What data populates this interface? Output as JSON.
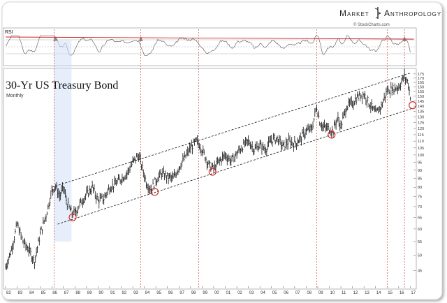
{
  "header": {
    "brand_left": "Market",
    "brand_right": "Anthropology",
    "credit": "© StockCharts.com",
    "emblem": "rod-of-asclepius-icon"
  },
  "chart_data": [
    {
      "type": "line",
      "indicator": "RSI",
      "title": "RSI",
      "ylim": [
        0,
        100
      ],
      "reference_lines": [
        30,
        50,
        70
      ],
      "resistance_line": {
        "from": {
          "x": 1982.0,
          "y": 78
        },
        "to": {
          "x": 2017.3,
          "y": 72
        }
      },
      "overbought_peaks_marked": [
        1986.3,
        1993.7,
        2016.5
      ],
      "color": "#555555"
    },
    {
      "type": "line",
      "title": "30-Yr US Treasury Bond",
      "subtitle": "Monthly",
      "scale": "log",
      "ylim": [
        40,
        180
      ],
      "y_tick_labels": [
        "45",
        "50",
        "55",
        "60",
        "65",
        "70",
        "75",
        "80",
        "85",
        "90",
        "95",
        "100",
        "105",
        "110",
        "115",
        "120",
        "125",
        "130",
        "135",
        "140",
        "145",
        "150",
        "155",
        "160",
        "165",
        "170",
        "175"
      ],
      "y_ticks": [
        45,
        50,
        55,
        60,
        65,
        70,
        75,
        80,
        85,
        90,
        95,
        100,
        105,
        110,
        115,
        120,
        125,
        130,
        135,
        140,
        145,
        150,
        155,
        160,
        165,
        170,
        175
      ],
      "x_tick_labels": [
        "82",
        "83",
        "84",
        "85",
        "86",
        "87",
        "88",
        "89",
        "90",
        "91",
        "92",
        "93",
        "94",
        "95",
        "96",
        "97",
        "98",
        "99",
        "00",
        "01",
        "02",
        "03",
        "04",
        "05",
        "06",
        "07",
        "08",
        "09",
        "10",
        "11",
        "12",
        "13",
        "14",
        "15",
        "16",
        "17"
      ],
      "xlim": [
        1982.0,
        2017.4
      ],
      "series": [
        {
          "x": [
            1982.0,
            1982.5,
            1983.0,
            1983.5,
            1984.0,
            1984.5,
            1985.0,
            1985.5,
            1986.0,
            1986.3,
            1986.7,
            1987.0,
            1987.3,
            1987.7,
            1988.0,
            1988.5,
            1989.0,
            1989.5,
            1990.0,
            1990.5,
            1991.0,
            1991.5,
            1992.0,
            1992.5,
            1993.0,
            1993.5,
            1993.8,
            1994.2,
            1994.6,
            1995.0,
            1995.5,
            1996.0,
            1996.5,
            1997.0,
            1997.5,
            1998.0,
            1998.5,
            1998.8,
            1999.2,
            1999.6,
            2000.0,
            2000.5,
            2001.0,
            2001.5,
            2002.0,
            2002.5,
            2003.0,
            2003.5,
            2004.0,
            2004.5,
            2005.0,
            2005.5,
            2006.0,
            2006.5,
            2007.0,
            2007.5,
            2008.0,
            2008.5,
            2008.9,
            2009.2,
            2009.5,
            2010.0,
            2010.3,
            2010.7,
            2011.0,
            2011.5,
            2012.0,
            2012.5,
            2013.0,
            2013.5,
            2014.0,
            2014.5,
            2015.0,
            2015.5,
            2016.0,
            2016.5,
            2016.8,
            2017.0
          ],
          "values": [
            46,
            52,
            62,
            55,
            52,
            48,
            58,
            66,
            78,
            81,
            75,
            80,
            72,
            67,
            67,
            72,
            76,
            80,
            73,
            74,
            80,
            82,
            85,
            88,
            95,
            100,
            92,
            82,
            79,
            84,
            88,
            86,
            85,
            92,
            98,
            105,
            110,
            107,
            100,
            93,
            91,
            96,
            100,
            96,
            101,
            106,
            110,
            104,
            107,
            104,
            111,
            112,
            106,
            110,
            108,
            112,
            118,
            120,
            140,
            125,
            121,
            120,
            118,
            129,
            122,
            140,
            143,
            150,
            152,
            142,
            133,
            140,
            156,
            158,
            160,
            172,
            165,
            150
          ]
        }
      ],
      "channel": {
        "upper": {
          "from": {
            "x": 1986.0,
            "y": 80
          },
          "to": {
            "x": 2017.0,
            "y": 176
          }
        },
        "lower": {
          "from": {
            "x": 1986.5,
            "y": 62
          },
          "to": {
            "x": 2017.2,
            "y": 138
          }
        }
      },
      "circled_lows": [
        {
          "x": 1987.8,
          "y": 65
        },
        {
          "x": 1994.9,
          "y": 77.5
        },
        {
          "x": 1999.9,
          "y": 89
        },
        {
          "x": 2010.2,
          "y": 115
        },
        {
          "x": 2017.2,
          "y": 141
        }
      ],
      "highlight_band": {
        "from": 1986.2,
        "to": 1987.7
      },
      "vertical_markers": [
        1986.2,
        1993.7,
        1998.7,
        2008.9,
        2015.0,
        2016.5
      ],
      "color": "#000000",
      "annotation_color": "#d42020"
    }
  ]
}
